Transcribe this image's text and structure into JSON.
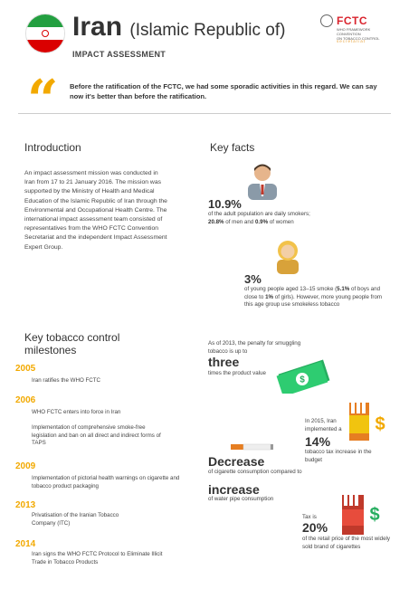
{
  "header": {
    "country": "Iran",
    "country_full": "(Islamic Republic of)",
    "report_type": "IMPACT ASSESSMENT",
    "brand": "FCTC",
    "brand_fine_1": "WHO FRAMEWORK CONVENTION",
    "brand_fine_2": "ON TOBACCO CONTROL",
    "brand_secretariat": "secretariat"
  },
  "quote": "Before the ratification of the FCTC, we had some sporadic activities in this regard. We can say now it's better than before the ratification.",
  "introduction": {
    "heading": "Introduction",
    "body": "An impact assessment mission was conducted in Iran from 17 to 21 January 2016. The mission was supported by the Ministry of Health and Medical Education of the Islamic Republic of Iran through the Environmental and Occupational Health Centre. The international impact assessment team consisted of representatives from the WHO FCTC Convention Secretariat and the independent Impact Assessment Expert Group."
  },
  "key_facts": {
    "heading": "Key facts",
    "adult_value": "10.9%",
    "adult_text": "of the adult population are daily smokers;",
    "adult_men": "20.8%",
    "adult_men_text": "of men and",
    "adult_women": "0.9%",
    "adult_women_text": "of women",
    "youth_value": "3%",
    "youth_text_1": "of young people aged 13–15 smoke (",
    "youth_boys": "5.1%",
    "youth_text_2": "of boys and close to",
    "youth_girls": "1%",
    "youth_text_3": "of girls). However, more young people from this age group use smokeless tobacco",
    "smuggling_intro": "As of 2013, the penalty for smuggling tobacco is up to",
    "smuggling_value": "three",
    "smuggling_text": "times the product value",
    "tax_intro": "In 2015, Iran implemented a",
    "tax_value": "14%",
    "tax_text": "tobacco tax increase in the budget",
    "decrease_value": "Decrease",
    "decrease_text": "of cigarette consumption compared to",
    "increase_value": "increase",
    "increase_text": "of water pipe consumption",
    "retail_intro": "Tax is",
    "retail_value": "20%",
    "retail_text": "of the retail price of the most widely sold brand of cigarettes"
  },
  "milestones": {
    "heading_1": "Key tobacco control",
    "heading_2": "milestones",
    "items": [
      {
        "year": "2005",
        "text": "Iran ratifies the WHO FCTC"
      },
      {
        "year": "2006",
        "text": "WHO FCTC enters into force in Iran",
        "text2": "Implementation of comprehensive smoke-free legislation and ban on all direct and indirect forms of TAPS"
      },
      {
        "year": "2009",
        "text": "Implementation of pictorial health warnings on cigarette and tobacco product packaging"
      },
      {
        "year": "2013",
        "text": "Privatisation of the Iranian Tobacco Company (ITC)"
      },
      {
        "year": "2014",
        "text": "Iran signs the WHO FCTC Protocol to Eliminate Illicit Trade in Tobacco Products"
      }
    ]
  },
  "colors": {
    "accent": "#f2a900",
    "brand_red": "#d9232d"
  }
}
